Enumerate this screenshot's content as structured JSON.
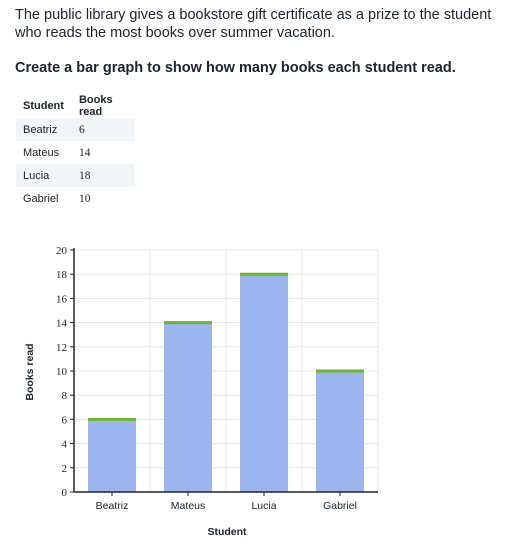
{
  "question": {
    "intro": "The public library gives a bookstore gift certificate as a prize to the student who reads the most books over summer vacation.",
    "prompt": "Create a bar graph to show how many books each student read."
  },
  "table": {
    "headers": [
      "Student",
      "Books read"
    ],
    "rows": [
      {
        "student": "Beatriz",
        "books": "6"
      },
      {
        "student": "Mateus",
        "books": "14"
      },
      {
        "student": "Lucia",
        "books": "18"
      },
      {
        "student": "Gabriel",
        "books": "10"
      }
    ]
  },
  "chart_data": {
    "type": "bar",
    "categories": [
      "Beatriz",
      "Mateus",
      "Lucia",
      "Gabriel"
    ],
    "values": [
      6,
      14,
      18,
      10
    ],
    "xlabel": "Student",
    "ylabel": "Books read",
    "ylim": [
      0,
      20
    ],
    "yticks": [
      0,
      2,
      4,
      6,
      8,
      10,
      12,
      14,
      16,
      18,
      20
    ],
    "grid": true,
    "colors": {
      "bar": "#9db5ee",
      "bar_top": "#6cb62a",
      "grid": "#e4e5e8",
      "axis": "#21242c"
    }
  }
}
